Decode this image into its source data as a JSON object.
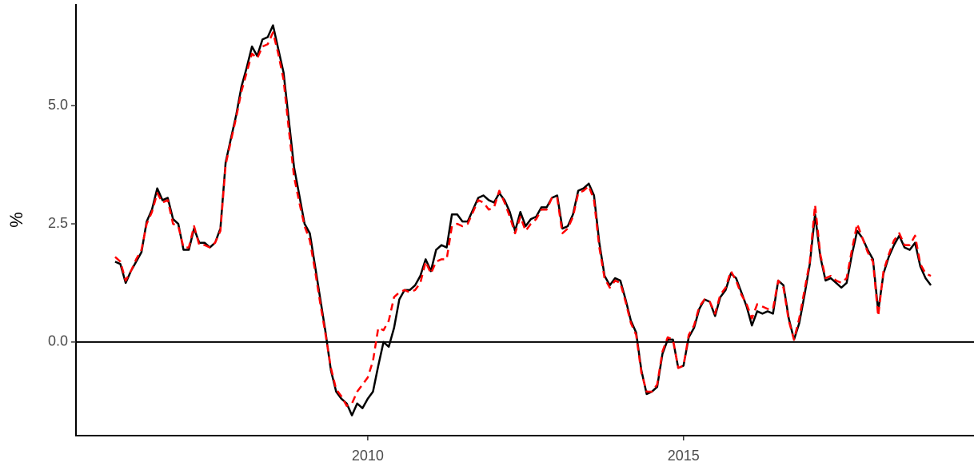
{
  "chart_data": {
    "type": "line",
    "ylabel": "%",
    "xlim": [
      2005.38,
      2019.6
    ],
    "ylim": [
      -1.98,
      7.15
    ],
    "xticks": [
      2010,
      2015
    ],
    "yticks": [
      {
        "value": 0,
        "label": "0.0"
      },
      {
        "value": 2.5,
        "label": "2.5"
      },
      {
        "value": 5,
        "label": "5.0"
      }
    ],
    "hline": 0,
    "x": [
      2006.0,
      2006.083,
      2006.167,
      2006.25,
      2006.333,
      2006.417,
      2006.5,
      2006.583,
      2006.667,
      2006.75,
      2006.833,
      2006.917,
      2007.0,
      2007.083,
      2007.167,
      2007.25,
      2007.333,
      2007.417,
      2007.5,
      2007.583,
      2007.667,
      2007.75,
      2007.833,
      2007.917,
      2008.0,
      2008.083,
      2008.167,
      2008.25,
      2008.333,
      2008.417,
      2008.5,
      2008.583,
      2008.667,
      2008.75,
      2008.833,
      2008.917,
      2009.0,
      2009.083,
      2009.167,
      2009.25,
      2009.333,
      2009.417,
      2009.5,
      2009.583,
      2009.667,
      2009.75,
      2009.833,
      2009.917,
      2010.0,
      2010.083,
      2010.167,
      2010.25,
      2010.333,
      2010.417,
      2010.5,
      2010.583,
      2010.667,
      2010.75,
      2010.833,
      2010.917,
      2011.0,
      2011.083,
      2011.167,
      2011.25,
      2011.333,
      2011.417,
      2011.5,
      2011.583,
      2011.667,
      2011.75,
      2011.833,
      2011.917,
      2012.0,
      2012.083,
      2012.167,
      2012.25,
      2012.333,
      2012.417,
      2012.5,
      2012.583,
      2012.667,
      2012.75,
      2012.833,
      2012.917,
      2013.0,
      2013.083,
      2013.167,
      2013.25,
      2013.333,
      2013.417,
      2013.5,
      2013.583,
      2013.667,
      2013.75,
      2013.833,
      2013.917,
      2014.0,
      2014.083,
      2014.167,
      2014.25,
      2014.333,
      2014.417,
      2014.5,
      2014.583,
      2014.667,
      2014.75,
      2014.833,
      2014.917,
      2015.0,
      2015.083,
      2015.167,
      2015.25,
      2015.333,
      2015.417,
      2015.5,
      2015.583,
      2015.667,
      2015.75,
      2015.833,
      2015.917,
      2016.0,
      2016.083,
      2016.167,
      2016.25,
      2016.333,
      2016.417,
      2016.5,
      2016.583,
      2016.667,
      2016.75,
      2016.833,
      2016.917,
      2017.0,
      2017.083,
      2017.167,
      2017.25,
      2017.333,
      2017.417,
      2017.5,
      2017.583,
      2017.667,
      2017.75,
      2017.833,
      2017.917,
      2018.0,
      2018.083,
      2018.167,
      2018.25,
      2018.333,
      2018.417,
      2018.5,
      2018.583,
      2018.667,
      2018.75,
      2018.833,
      2018.917
    ],
    "series": [
      {
        "color": "#000000",
        "dash": false,
        "values": [
          1.7,
          1.65,
          1.25,
          1.5,
          1.7,
          1.9,
          2.55,
          2.8,
          3.25,
          3.0,
          3.05,
          2.6,
          2.5,
          1.95,
          1.95,
          2.4,
          2.1,
          2.1,
          2.0,
          2.1,
          2.4,
          3.8,
          4.3,
          4.8,
          5.4,
          5.8,
          6.25,
          6.05,
          6.4,
          6.45,
          6.7,
          6.2,
          5.7,
          4.7,
          3.7,
          3.1,
          2.5,
          2.3,
          1.6,
          0.9,
          0.2,
          -0.6,
          -1.05,
          -1.2,
          -1.3,
          -1.55,
          -1.3,
          -1.4,
          -1.2,
          -1.05,
          -0.5,
          0.0,
          -0.1,
          0.3,
          0.9,
          1.1,
          1.1,
          1.2,
          1.4,
          1.75,
          1.5,
          1.95,
          2.05,
          2.0,
          2.7,
          2.7,
          2.55,
          2.55,
          2.8,
          3.05,
          3.1,
          3.0,
          2.95,
          3.15,
          3.0,
          2.75,
          2.35,
          2.75,
          2.45,
          2.6,
          2.65,
          2.85,
          2.85,
          3.05,
          3.1,
          2.4,
          2.45,
          2.7,
          3.2,
          3.25,
          3.35,
          3.1,
          2.1,
          1.4,
          1.2,
          1.35,
          1.3,
          0.9,
          0.45,
          0.2,
          -0.6,
          -1.1,
          -1.05,
          -0.95,
          -0.25,
          0.05,
          0.05,
          -0.55,
          -0.5,
          0.1,
          0.3,
          0.7,
          0.9,
          0.85,
          0.55,
          0.95,
          1.1,
          1.45,
          1.35,
          1.05,
          0.75,
          0.35,
          0.65,
          0.6,
          0.65,
          0.6,
          1.3,
          1.2,
          0.5,
          0.05,
          0.4,
          1.0,
          1.65,
          2.7,
          1.8,
          1.3,
          1.35,
          1.25,
          1.15,
          1.25,
          1.85,
          2.35,
          2.2,
          1.95,
          1.75,
          0.65,
          1.45,
          1.8,
          2.05,
          2.25,
          2.0,
          1.95,
          2.1,
          1.6,
          1.35,
          1.2
        ]
      },
      {
        "color": "#ff0000",
        "dash": true,
        "values": [
          1.8,
          1.7,
          1.3,
          1.5,
          1.75,
          1.95,
          2.5,
          2.75,
          3.15,
          2.95,
          3.0,
          2.5,
          2.45,
          2.0,
          2.0,
          2.45,
          2.05,
          2.05,
          2.0,
          2.1,
          2.35,
          3.75,
          4.25,
          4.75,
          5.3,
          5.7,
          6.1,
          6.0,
          6.25,
          6.3,
          6.55,
          6.1,
          5.55,
          4.5,
          3.5,
          2.95,
          2.45,
          2.15,
          1.5,
          0.8,
          0.15,
          -0.55,
          -1.0,
          -1.15,
          -1.35,
          -1.3,
          -1.05,
          -0.9,
          -0.75,
          -0.4,
          0.3,
          0.25,
          0.45,
          0.95,
          1.05,
          1.1,
          1.05,
          1.1,
          1.25,
          1.7,
          1.45,
          1.7,
          1.75,
          1.75,
          2.45,
          2.5,
          2.45,
          2.5,
          2.75,
          3.0,
          2.95,
          2.8,
          2.85,
          3.2,
          2.95,
          2.65,
          2.3,
          2.65,
          2.35,
          2.5,
          2.6,
          2.8,
          2.8,
          3.05,
          3.05,
          2.3,
          2.4,
          2.65,
          3.15,
          3.2,
          3.3,
          3.0,
          2.0,
          1.35,
          1.15,
          1.3,
          1.25,
          0.85,
          0.4,
          0.15,
          -0.65,
          -1.05,
          -1.05,
          -0.9,
          -0.2,
          0.1,
          0.05,
          -0.55,
          -0.5,
          0.15,
          0.35,
          0.75,
          0.9,
          0.85,
          0.6,
          1.0,
          1.15,
          1.5,
          1.3,
          1.0,
          0.8,
          0.5,
          0.8,
          0.75,
          0.7,
          0.7,
          1.3,
          1.15,
          0.45,
          0.05,
          0.5,
          1.1,
          1.7,
          2.9,
          1.85,
          1.35,
          1.4,
          1.3,
          1.25,
          1.35,
          1.95,
          2.5,
          2.2,
          1.9,
          1.7,
          0.55,
          1.5,
          1.85,
          2.15,
          2.3,
          2.05,
          2.05,
          2.25,
          1.65,
          1.45,
          1.4
        ]
      }
    ]
  }
}
